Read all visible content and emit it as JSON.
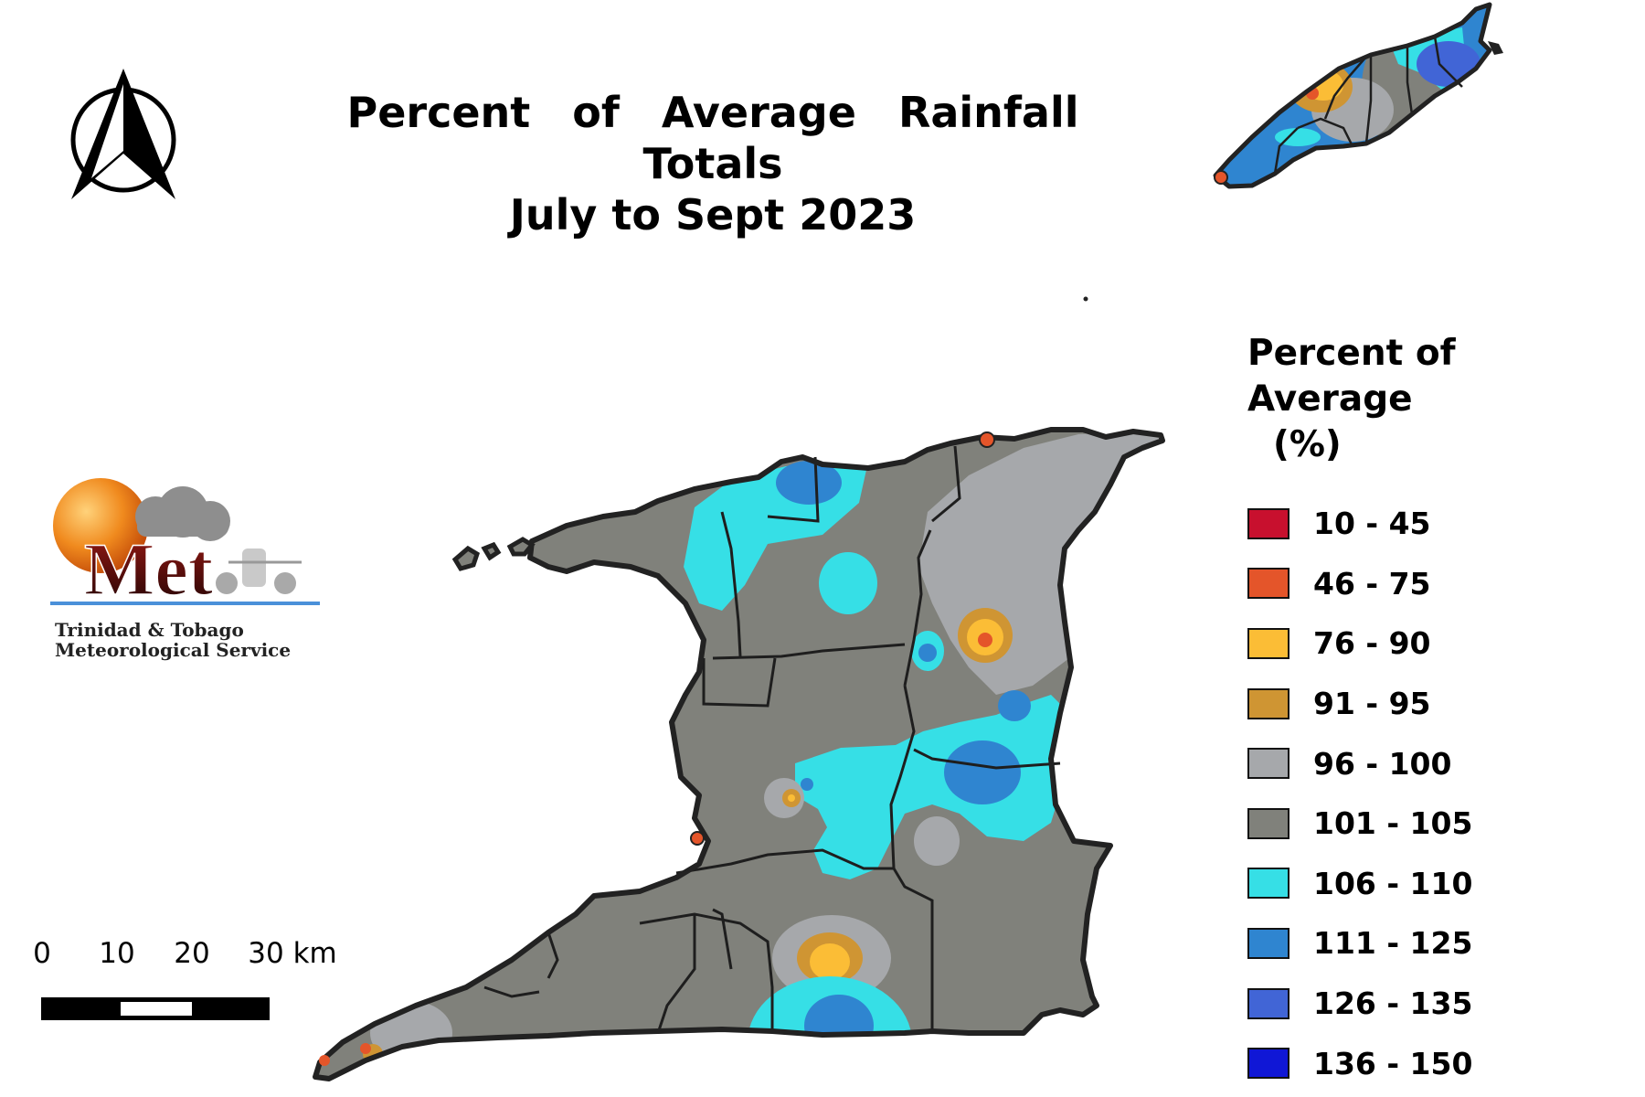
{
  "title": {
    "line1": "Percent of Average Rainfall Totals",
    "line2": "July to Sept 2023"
  },
  "legend": {
    "title": "Percent of Average",
    "unit": "(%)",
    "items": [
      {
        "label": "10 - 45",
        "color": "#c8102e"
      },
      {
        "label": "46 - 75",
        "color": "#e4552a"
      },
      {
        "label": "76 - 90",
        "color": "#fbbd36"
      },
      {
        "label": "91 - 95",
        "color": "#cf9533"
      },
      {
        "label": "96 - 100",
        "color": "#a6a8ab"
      },
      {
        "label": "101 - 105",
        "color": "#80817b"
      },
      {
        "label": "106 - 110",
        "color": "#36dfe6"
      },
      {
        "label": "111 - 125",
        "color": "#2f85d0"
      },
      {
        "label": "126 - 135",
        "color": "#4165d6"
      },
      {
        "label": "136 - 150",
        "color": "#1017d6"
      }
    ]
  },
  "logo": {
    "word": "Met",
    "line1": "Trinidad & Tobago",
    "line2": "Meteorological Service"
  },
  "scale_bar": {
    "ticks": [
      "0",
      "10",
      "20"
    ],
    "last_tick": "30 km"
  },
  "icons": {
    "north_arrow": "north-arrow-icon"
  }
}
